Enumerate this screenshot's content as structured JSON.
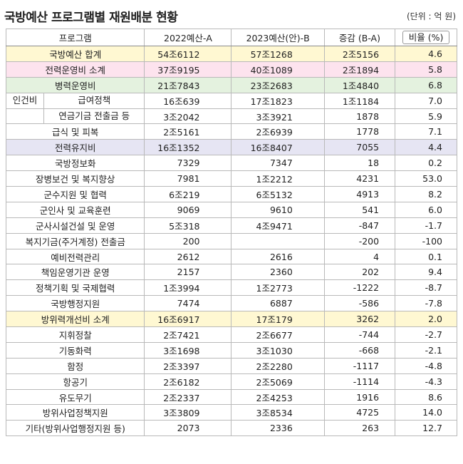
{
  "title": "국방예산 프로그램별 재원배분 현황",
  "unit": "(단위 : 억 원)",
  "headers": [
    "프로그램",
    "2022예산-A",
    "2023예산(안)-B",
    "증감 (B-A)",
    "비율 (%)"
  ],
  "group_label": "인건비",
  "rows": [
    {
      "name": "국방예산 합계",
      "a": "54조6112",
      "b": "57조1268",
      "d": "2조5156",
      "r": "4.6"
    },
    {
      "name": "전력운영비 소계",
      "a": "37조9195",
      "b": "40조1089",
      "d": "2조1894",
      "r": "5.8"
    },
    {
      "name": "병력운영비",
      "a": "21조7843",
      "b": "23조2683",
      "d": "1조4840",
      "r": "6.8"
    },
    {
      "name": "급여정책",
      "a": "16조639",
      "b": "17조1823",
      "d": "1조1184",
      "r": "7.0"
    },
    {
      "name": "연금기금 전출금 등",
      "a": "3조2042",
      "b": "3조3921",
      "d": "1878",
      "r": "5.9"
    },
    {
      "name": "급식 및 피복",
      "a": "2조5161",
      "b": "2조6939",
      "d": "1778",
      "r": "7.1"
    },
    {
      "name": "전력유지비",
      "a": "16조1352",
      "b": "16조8407",
      "d": "7055",
      "r": "4.4"
    },
    {
      "name": "국방정보화",
      "a": "7329",
      "b": "7347",
      "d": "18",
      "r": "0.2"
    },
    {
      "name": "장병보건 및 복지향상",
      "a": "7981",
      "b": "1조2212",
      "d": "4231",
      "r": "53.0"
    },
    {
      "name": "군수지원 및 협력",
      "a": "6조219",
      "b": "6조5132",
      "d": "4913",
      "r": "8.2"
    },
    {
      "name": "군인사 및 교육훈련",
      "a": "9069",
      "b": "9610",
      "d": "541",
      "r": "6.0"
    },
    {
      "name": "군사시설건설 및 운영",
      "a": "5조318",
      "b": "4조9471",
      "d": "-847",
      "r": "-1.7"
    },
    {
      "name": "복지기금(주거계정) 전출금",
      "a": "200",
      "b": "",
      "d": "-200",
      "r": "-100"
    },
    {
      "name": "예비전력관리",
      "a": "2612",
      "b": "2616",
      "d": "4",
      "r": "0.1"
    },
    {
      "name": "책임운영기관 운영",
      "a": "2157",
      "b": "2360",
      "d": "202",
      "r": "9.4"
    },
    {
      "name": "정책기획 및 국제협력",
      "a": "1조3994",
      "b": "1조2773",
      "d": "-1222",
      "r": "-8.7"
    },
    {
      "name": "국방행정지원",
      "a": "7474",
      "b": "6887",
      "d": "-586",
      "r": "-7.8"
    },
    {
      "name": "방위력개선비 소계",
      "a": "16조6917",
      "b": "17조179",
      "d": "3262",
      "r": "2.0"
    },
    {
      "name": "지휘정찰",
      "a": "2조7421",
      "b": "2조6677",
      "d": "-744",
      "r": "-2.7"
    },
    {
      "name": "기동화력",
      "a": "3조1698",
      "b": "3조1030",
      "d": "-668",
      "r": "-2.1"
    },
    {
      "name": "함정",
      "a": "2조3397",
      "b": "2조2280",
      "d": "-1117",
      "r": "-4.8"
    },
    {
      "name": "항공기",
      "a": "2조6182",
      "b": "2조5069",
      "d": "-1114",
      "r": "-4.3"
    },
    {
      "name": "유도무기",
      "a": "2조2337",
      "b": "2조4253",
      "d": "1916",
      "r": "8.6"
    },
    {
      "name": "방위사업정책지원",
      "a": "3조3809",
      "b": "3조8534",
      "d": "4725",
      "r": "14.0"
    },
    {
      "name": "기타(방위사업행정지원 등)",
      "a": "2073",
      "b": "2336",
      "d": "263",
      "r": "12.7"
    }
  ]
}
